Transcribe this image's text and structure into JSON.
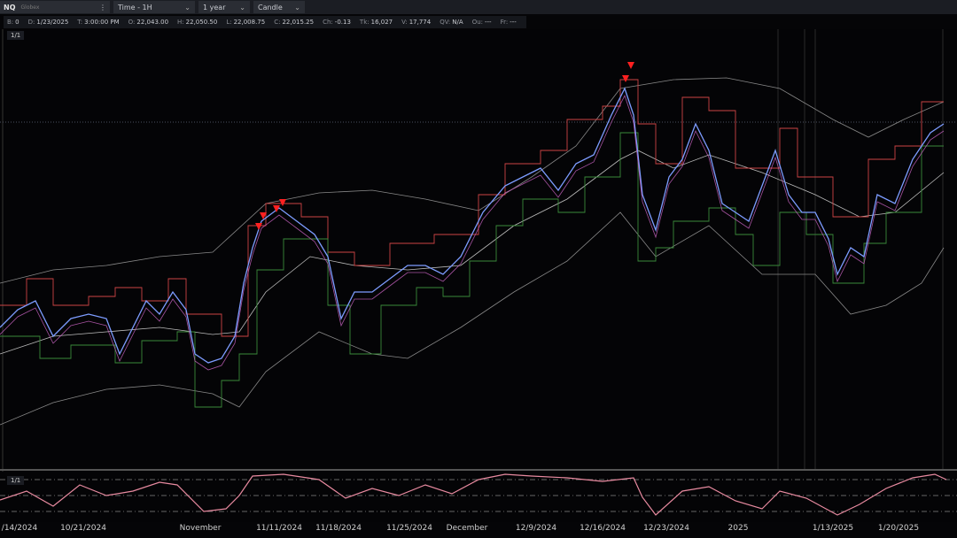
{
  "toolbar": {
    "symbol": "NQ",
    "exchange": "Globex",
    "menu": "⋮",
    "interval": "Time - 1H",
    "range": "1 year",
    "style": "Candle"
  },
  "info_bar": [
    {
      "label": "B:",
      "value": "0"
    },
    {
      "label": "D:",
      "value": "1/23/2025"
    },
    {
      "label": "T:",
      "value": "3:00:00 PM"
    },
    {
      "label": "O:",
      "value": "22,043.00"
    },
    {
      "label": "H:",
      "value": "22,050.50"
    },
    {
      "label": "L:",
      "value": "22,008.75"
    },
    {
      "label": "C:",
      "value": "22,015.25"
    },
    {
      "label": "Ch:",
      "value": "-0.13"
    },
    {
      "label": "Tk:",
      "value": "16,027"
    },
    {
      "label": "V:",
      "value": "17,774"
    },
    {
      "label": "QV:",
      "value": "N/A"
    },
    {
      "label": "Ou:",
      "value": "---"
    },
    {
      "label": "Fr:",
      "value": "---"
    }
  ],
  "price_pane": {
    "badge": "1/1"
  },
  "oscillator_pane": {
    "badge": "1/1"
  },
  "x_axis": [
    "/14/2024",
    "10/21/2024",
    "November",
    "11/11/2024",
    "11/18/2024",
    "11/25/2024",
    "December",
    "12/9/2024",
    "12/16/2024",
    "12/23/2024",
    "2025",
    "1/13/2025",
    "1/20/2025"
  ]
}
